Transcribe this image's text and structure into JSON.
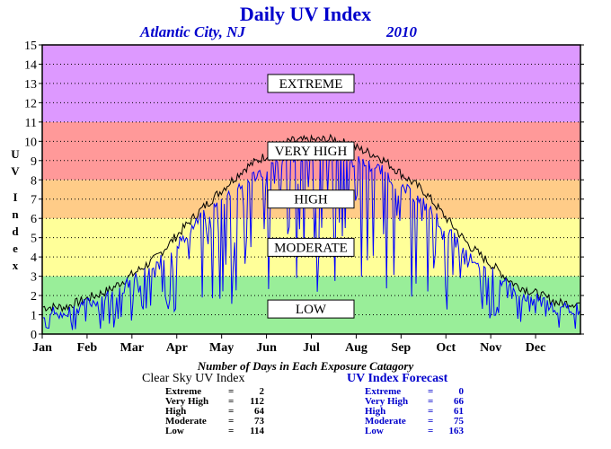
{
  "page": {
    "title": "Daily UV Index",
    "location": "Atlantic City, NJ",
    "year": "2010",
    "caption": "Number of Days in Each Exposure Catagory"
  },
  "chart_data": {
    "type": "line",
    "title": "Daily UV Index",
    "ylabel": "UV Index",
    "ylim": [
      0,
      15
    ],
    "y_ticks": [
      0,
      1,
      2,
      3,
      4,
      5,
      6,
      7,
      8,
      9,
      10,
      11,
      12,
      13,
      14,
      15
    ],
    "x_tick_labels": [
      "Jan",
      "Feb",
      "Mar",
      "Apr",
      "May",
      "Jun",
      "Jul",
      "Aug",
      "Sep",
      "Oct",
      "Nov",
      "Dec"
    ],
    "grid": true,
    "bands": [
      {
        "label": "LOW",
        "from": 0,
        "to": 3,
        "color": "#99ee99"
      },
      {
        "label": "MODERATE",
        "from": 3,
        "to": 6,
        "color": "#ffff99"
      },
      {
        "label": "HIGH",
        "from": 6,
        "to": 8,
        "color": "#ffcc88"
      },
      {
        "label": "VERY HIGH",
        "from": 8,
        "to": 11,
        "color": "#ff9999"
      },
      {
        "label": "EXTREME",
        "from": 11,
        "to": 15,
        "color": "#dd99ff"
      }
    ],
    "series": [
      {
        "name": "Clear Sky UV Index",
        "color": "#000000",
        "x": [
          "Jan",
          "Feb",
          "Mar",
          "Apr",
          "May",
          "Jun",
          "Jul",
          "Aug",
          "Sep",
          "Oct",
          "Nov",
          "Dec"
        ],
        "values": [
          1.4,
          2.3,
          3.9,
          6.4,
          8.6,
          10.0,
          10.1,
          9.2,
          7.4,
          4.6,
          2.6,
          1.6
        ]
      },
      {
        "name": "UV Index Forecast",
        "color": "#0000ff",
        "x": [
          "Jan",
          "Feb",
          "Mar",
          "Apr",
          "May",
          "Jun",
          "Jul",
          "Aug",
          "Sep",
          "Oct",
          "Nov",
          "Dec"
        ],
        "values": [
          1.2,
          2.1,
          3.5,
          6.0,
          8.0,
          9.3,
          9.4,
          8.6,
          6.8,
          4.1,
          2.3,
          1.4
        ],
        "min_values": [
          0.2,
          0.3,
          0.5,
          1.5,
          0.5,
          2.0,
          2.0,
          2.5,
          1.5,
          1.0,
          0.5,
          0.2
        ]
      }
    ]
  },
  "summary": {
    "clear_sky": {
      "title": "Clear Sky UV Index",
      "rows": [
        {
          "label": "Extreme",
          "value": "2"
        },
        {
          "label": "Very High",
          "value": "112"
        },
        {
          "label": "High",
          "value": "64"
        },
        {
          "label": "Moderate",
          "value": "73"
        },
        {
          "label": "Low",
          "value": "114"
        }
      ]
    },
    "forecast": {
      "title": "UV Index Forecast",
      "rows": [
        {
          "label": "Extreme",
          "value": "0"
        },
        {
          "label": "Very High",
          "value": "66"
        },
        {
          "label": "High",
          "value": "61"
        },
        {
          "label": "Moderate",
          "value": "75"
        },
        {
          "label": "Low",
          "value": "163"
        }
      ]
    }
  }
}
